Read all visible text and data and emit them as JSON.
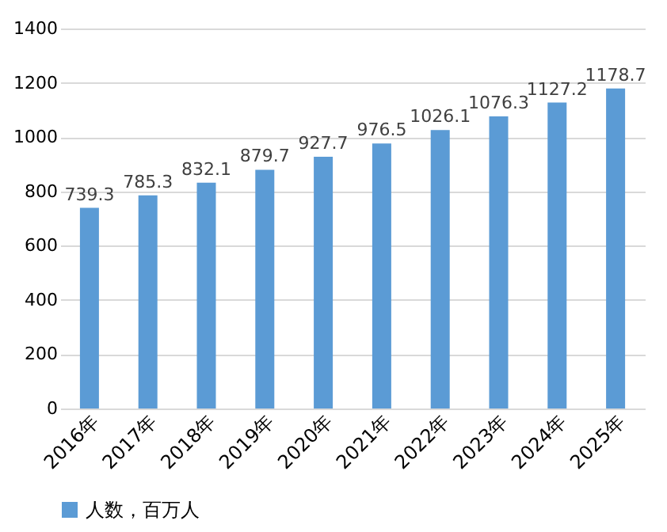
{
  "chart_data": {
    "type": "bar",
    "categories": [
      "2016年",
      "2017年",
      "2018年",
      "2019年",
      "2020年",
      "2021年",
      "2022年",
      "2023年",
      "2024年",
      "2025年"
    ],
    "series": [
      {
        "name": "人数，百万人",
        "color": "#5b9bd5",
        "values": [
          739.3,
          785.3,
          832.1,
          879.7,
          927.7,
          976.5,
          1026.1,
          1076.3,
          1127.2,
          1178.7
        ]
      }
    ],
    "ylim": [
      0,
      1400
    ],
    "yticks": [
      0,
      200,
      400,
      600,
      800,
      1000,
      1200,
      1400
    ],
    "grid": "y",
    "legend": "bottom",
    "data_labels": true
  }
}
